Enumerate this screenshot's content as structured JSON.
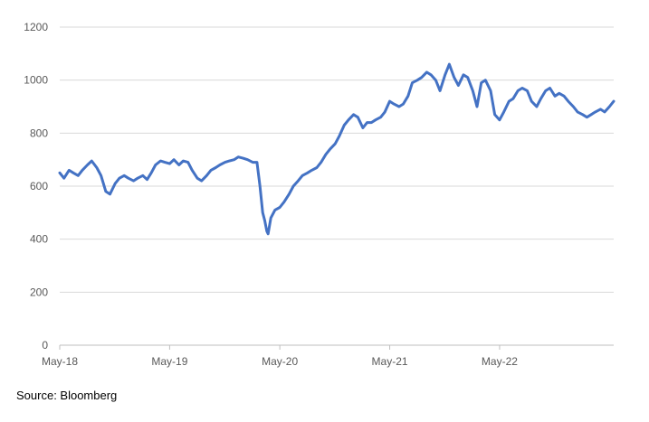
{
  "chart_data": {
    "type": "line",
    "title": "",
    "xlabel": "",
    "ylabel": "",
    "ylim": [
      0,
      1200
    ],
    "yticks": [
      0,
      200,
      400,
      600,
      800,
      1000,
      1200
    ],
    "xlim": [
      "2018-05-01",
      "2023-05-15"
    ],
    "xticks": [
      {
        "label": "May-18",
        "date": "2018-05-01"
      },
      {
        "label": "May-19",
        "date": "2019-05-01"
      },
      {
        "label": "May-20",
        "date": "2020-05-01"
      },
      {
        "label": "May-21",
        "date": "2021-05-01"
      },
      {
        "label": "May-22",
        "date": "2022-05-01"
      }
    ],
    "grid": "horizontal",
    "legend": "none",
    "series": [
      {
        "color": "#4472C4",
        "x": [
          "2018-05-01",
          "2018-05-15",
          "2018-06-01",
          "2018-06-15",
          "2018-07-01",
          "2018-07-15",
          "2018-08-01",
          "2018-08-15",
          "2018-09-01",
          "2018-09-15",
          "2018-10-01",
          "2018-10-15",
          "2018-11-01",
          "2018-11-15",
          "2018-12-01",
          "2018-12-15",
          "2019-01-01",
          "2019-01-15",
          "2019-02-01",
          "2019-02-15",
          "2019-03-01",
          "2019-03-15",
          "2019-04-01",
          "2019-04-15",
          "2019-05-01",
          "2019-05-15",
          "2019-06-01",
          "2019-06-15",
          "2019-07-01",
          "2019-07-15",
          "2019-08-01",
          "2019-08-15",
          "2019-09-01",
          "2019-09-15",
          "2019-10-01",
          "2019-10-15",
          "2019-11-01",
          "2019-11-15",
          "2019-12-01",
          "2019-12-15",
          "2020-01-01",
          "2020-01-15",
          "2020-02-01",
          "2020-02-15",
          "2020-02-25",
          "2020-03-05",
          "2020-03-12",
          "2020-03-19",
          "2020-03-23",
          "2020-04-01",
          "2020-04-15",
          "2020-05-01",
          "2020-05-15",
          "2020-06-01",
          "2020-06-15",
          "2020-07-01",
          "2020-07-15",
          "2020-08-01",
          "2020-08-15",
          "2020-09-01",
          "2020-09-15",
          "2020-10-01",
          "2020-10-15",
          "2020-11-01",
          "2020-11-15",
          "2020-12-01",
          "2020-12-15",
          "2021-01-01",
          "2021-01-15",
          "2021-02-01",
          "2021-02-15",
          "2021-03-01",
          "2021-03-15",
          "2021-04-01",
          "2021-04-15",
          "2021-05-01",
          "2021-05-15",
          "2021-06-01",
          "2021-06-15",
          "2021-07-01",
          "2021-07-15",
          "2021-08-01",
          "2021-08-15",
          "2021-09-01",
          "2021-09-15",
          "2021-10-01",
          "2021-10-15",
          "2021-11-01",
          "2021-11-15",
          "2021-12-01",
          "2021-12-15",
          "2022-01-01",
          "2022-01-15",
          "2022-02-01",
          "2022-02-15",
          "2022-03-01",
          "2022-03-15",
          "2022-04-01",
          "2022-04-15",
          "2022-05-01",
          "2022-05-15",
          "2022-06-01",
          "2022-06-15",
          "2022-07-01",
          "2022-07-15",
          "2022-08-01",
          "2022-08-15",
          "2022-09-01",
          "2022-09-15",
          "2022-10-01",
          "2022-10-15",
          "2022-11-01",
          "2022-11-15",
          "2022-12-01",
          "2022-12-15",
          "2023-01-01",
          "2023-01-15",
          "2023-02-01",
          "2023-02-15",
          "2023-03-01",
          "2023-03-15",
          "2023-04-01",
          "2023-04-15",
          "2023-05-01",
          "2023-05-15"
        ],
        "y": [
          650,
          630,
          660,
          650,
          640,
          660,
          680,
          695,
          670,
          640,
          580,
          570,
          610,
          630,
          640,
          630,
          620,
          630,
          640,
          625,
          650,
          680,
          695,
          690,
          685,
          700,
          680,
          695,
          690,
          660,
          630,
          620,
          640,
          660,
          670,
          680,
          690,
          695,
          700,
          710,
          705,
          700,
          690,
          690,
          600,
          500,
          470,
          430,
          420,
          480,
          510,
          520,
          540,
          570,
          600,
          620,
          640,
          650,
          660,
          670,
          690,
          720,
          740,
          760,
          790,
          830,
          850,
          870,
          860,
          820,
          840,
          840,
          850,
          860,
          880,
          920,
          910,
          900,
          910,
          940,
          990,
          1000,
          1010,
          1030,
          1020,
          1000,
          960,
          1020,
          1060,
          1010,
          980,
          1020,
          1010,
          960,
          900,
          990,
          1000,
          960,
          870,
          850,
          880,
          920,
          930,
          960,
          970,
          960,
          920,
          900,
          930,
          960,
          970,
          940,
          950,
          940,
          920,
          900,
          880,
          870,
          860,
          870,
          880,
          890,
          880,
          900,
          920
        ]
      }
    ],
    "source": "Source: Bloomberg"
  }
}
